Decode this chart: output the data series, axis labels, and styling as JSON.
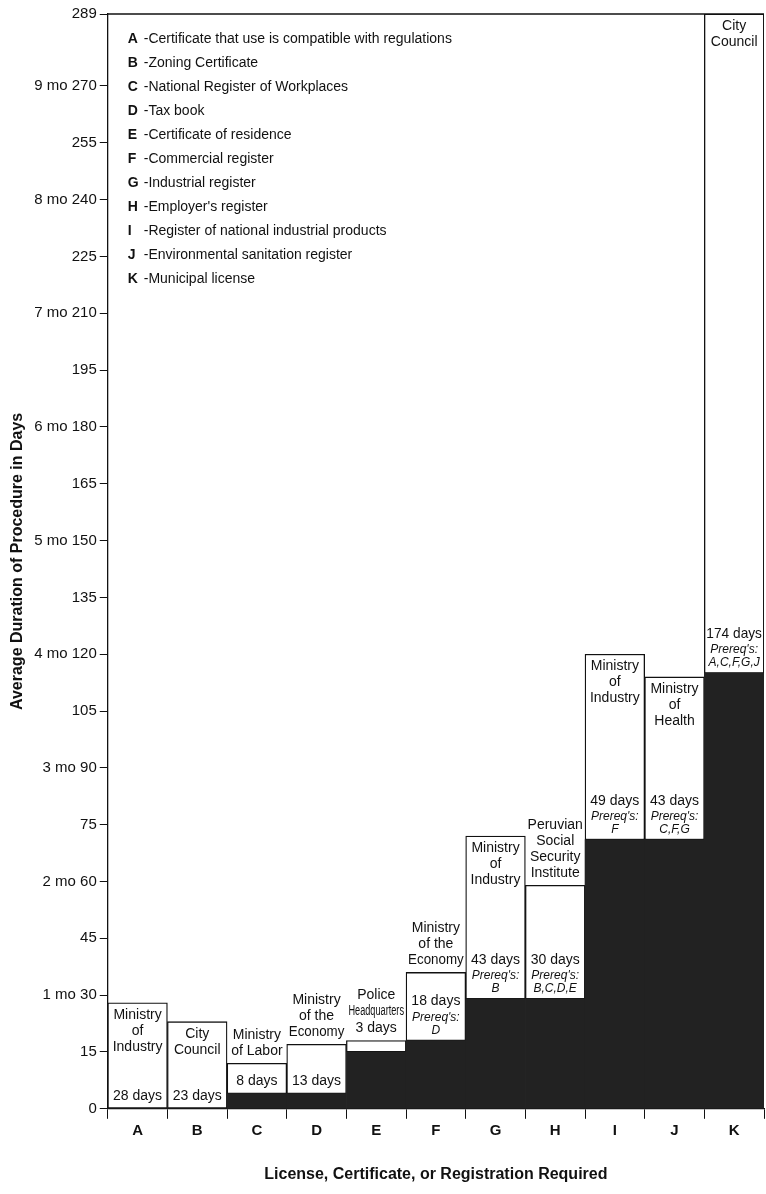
{
  "chart_data": {
    "type": "bar",
    "stacked": true,
    "categories": [
      "A",
      "B",
      "C",
      "D",
      "E",
      "F",
      "G",
      "H",
      "I",
      "J",
      "K"
    ],
    "series": [
      {
        "color": "#222222",
        "values": [
          0,
          0,
          4,
          4,
          15,
          18,
          29,
          29,
          71,
          71,
          115
        ]
      },
      {
        "color": "#ffffff",
        "values": [
          28,
          23,
          8,
          13,
          3,
          18,
          43,
          30,
          49,
          43,
          174
        ],
        "value_labels": [
          "28 days",
          "23 days",
          "8 days",
          "13 days",
          "3 days",
          "18 days",
          "43 days",
          "30 days",
          "49 days",
          "43 days",
          "174 days"
        ]
      }
    ],
    "xlabel": "License, Certificate, or Registration Required",
    "ylabel": "Average Duration of Procedure in Days",
    "ylim": [
      0,
      289
    ],
    "yticks": [
      0,
      15,
      {
        "value": 30,
        "label": "1 mo 30"
      },
      45,
      {
        "value": 60,
        "label": "2 mo 60"
      },
      75,
      {
        "value": 90,
        "label": "3 mo 90"
      },
      105,
      {
        "value": 120,
        "label": "4 mo 120"
      },
      135,
      {
        "value": 150,
        "label": "5 mo 150"
      },
      165,
      {
        "value": 180,
        "label": "6 mo 180"
      },
      195,
      {
        "value": 210,
        "label": "7 mo 210"
      },
      225,
      {
        "value": 240,
        "label": "8 mo 240"
      },
      255,
      {
        "value": 270,
        "label": "9 mo 270"
      },
      289
    ],
    "grid": false,
    "annotations": [
      "A -Certificate that use is compatible with regulations",
      "B -Zoning Certificate",
      "C -National Register of Workplaces",
      "D -Tax book",
      "E -Certificate of residence",
      "F -Commercial register",
      "G -Industrial register",
      "H -Employer's register",
      "I -Register of national industrial products",
      "J -Environmental sanitation register",
      "K -Municipal license",
      {
        "text": "Ministry of Industry",
        "x": "A",
        "y": 28
      },
      {
        "text": "City Council",
        "x": "B",
        "y": 23
      },
      {
        "text": "Ministry of Labor",
        "x": "C",
        "y": 12
      },
      {
        "text": "Ministry of the Economy",
        "x": "D",
        "y": 17
      },
      {
        "text": "Police Headquarters",
        "x": "E",
        "y": 18
      },
      {
        "text": "Ministry of the Economy",
        "x": "F",
        "y": 36
      },
      {
        "text": "Prereq's: D",
        "x": "F",
        "y": 18
      },
      {
        "text": "Ministry of Industry",
        "x": "G",
        "y": 72
      },
      {
        "text": "Prereq's: B",
        "x": "G",
        "y": 29
      },
      {
        "text": "Peruvian Social Security Institute",
        "x": "H",
        "y": 59
      },
      {
        "text": "Prereq's: B,C,D,E",
        "x": "H",
        "y": 29
      },
      {
        "text": "Ministry of Industry",
        "x": "I",
        "y": 120
      },
      {
        "text": "Prereq's: F",
        "x": "I",
        "y": 71
      },
      {
        "text": "Ministry of Health",
        "x": "J",
        "y": 114
      },
      {
        "text": "Prereq's: C,F,G",
        "x": "J",
        "y": 71
      },
      {
        "text": "City Council",
        "x": "K",
        "y": 289
      },
      {
        "text": "Prereq's: A,C,F,G,J",
        "x": "K",
        "y": 115
      }
    ]
  }
}
